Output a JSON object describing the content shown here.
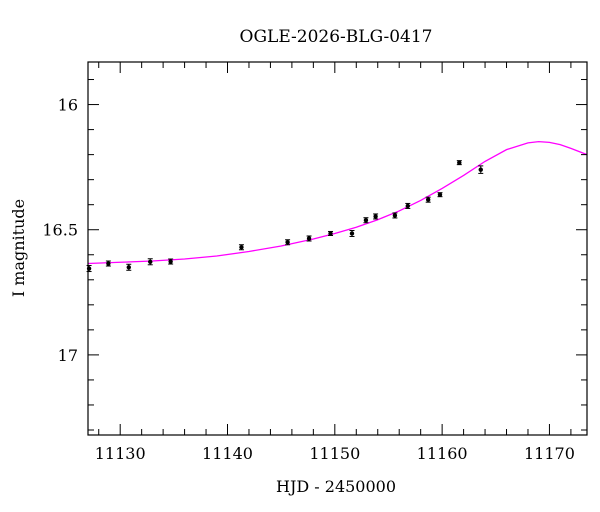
{
  "chart_data": {
    "type": "scatter",
    "title": "OGLE-2026-BLG-0417",
    "xlabel": "HJD - 2450000",
    "ylabel": "I magnitude",
    "xlim": [
      11127,
      11173.5
    ],
    "ylim": [
      17.32,
      15.83
    ],
    "y_inverted": true,
    "x_ticks": [
      11130,
      11140,
      11150,
      11160,
      11170
    ],
    "y_ticks": [
      16,
      16.5,
      17
    ],
    "y_tick_labels": [
      "16",
      "16.5",
      "17"
    ],
    "grid": false,
    "series": [
      {
        "kind": "points_with_errorbars",
        "color": "#000000",
        "points": [
          {
            "x": 11127.1,
            "y": 16.655,
            "err": 0.012
          },
          {
            "x": 11128.9,
            "y": 16.635,
            "err": 0.01
          },
          {
            "x": 11130.8,
            "y": 16.65,
            "err": 0.012
          },
          {
            "x": 11132.8,
            "y": 16.628,
            "err": 0.012
          },
          {
            "x": 11134.7,
            "y": 16.627,
            "err": 0.01
          },
          {
            "x": 11141.3,
            "y": 16.57,
            "err": 0.01
          },
          {
            "x": 11145.6,
            "y": 16.55,
            "err": 0.01
          },
          {
            "x": 11147.6,
            "y": 16.535,
            "err": 0.01
          },
          {
            "x": 11149.6,
            "y": 16.515,
            "err": 0.008
          },
          {
            "x": 11151.6,
            "y": 16.515,
            "err": 0.012
          },
          {
            "x": 11152.9,
            "y": 16.462,
            "err": 0.01
          },
          {
            "x": 11153.8,
            "y": 16.447,
            "err": 0.01
          },
          {
            "x": 11155.6,
            "y": 16.443,
            "err": 0.01
          },
          {
            "x": 11156.8,
            "y": 16.405,
            "err": 0.01
          },
          {
            "x": 11158.7,
            "y": 16.38,
            "err": 0.01
          },
          {
            "x": 11159.8,
            "y": 16.36,
            "err": 0.008
          },
          {
            "x": 11161.6,
            "y": 16.232,
            "err": 0.008
          },
          {
            "x": 11163.6,
            "y": 16.26,
            "err": 0.015
          }
        ]
      },
      {
        "kind": "model_curve",
        "color": "#ff00ff",
        "x": [
          11127,
          11130,
          11133,
          11136,
          11139,
          11142,
          11145,
          11148,
          11150,
          11152,
          11154,
          11156,
          11158,
          11160,
          11162,
          11164,
          11166,
          11168,
          11169,
          11170,
          11171,
          11172,
          11173.5
        ],
        "y": [
          16.635,
          16.63,
          16.625,
          16.617,
          16.605,
          16.587,
          16.565,
          16.537,
          16.515,
          16.49,
          16.46,
          16.425,
          16.383,
          16.335,
          16.283,
          16.227,
          16.18,
          16.153,
          16.148,
          16.151,
          16.16,
          16.175,
          16.2
        ]
      }
    ]
  }
}
